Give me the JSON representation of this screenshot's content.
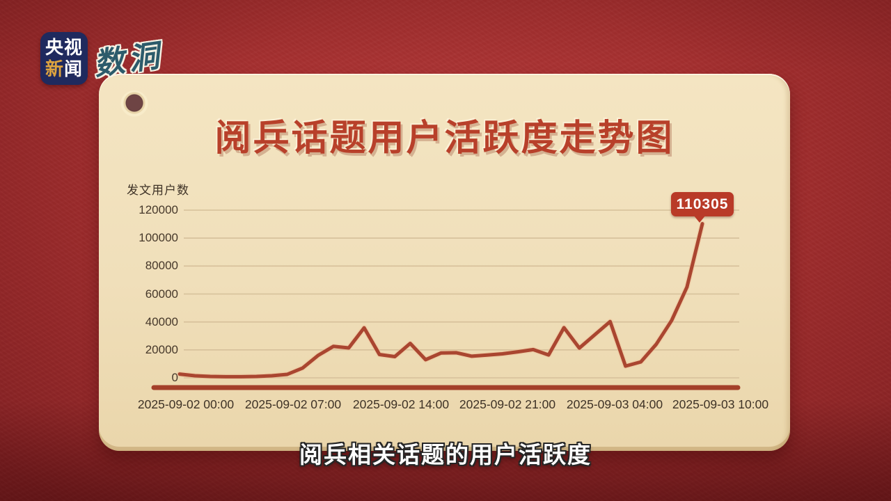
{
  "branding": {
    "cctv_line1": "央视",
    "cctv_line2_gold": "新",
    "cctv_line2_rest": "闻",
    "watermark": "数洞"
  },
  "card": {
    "title": "阅兵话题用户活跃度走势图"
  },
  "caption": "阅兵相关话题的用户活跃度",
  "callout": {
    "label": "110305"
  },
  "colors": {
    "background_red": "#a73131",
    "card_cream": "#f0dfba",
    "title_red": "#b8402a",
    "line_red": "#aa4630",
    "line_glow": "#f0c09a",
    "baseline_red": "#a4402a",
    "gridline": "#d6c09a",
    "axis_text": "#46382a",
    "callout_red": "#b93a28",
    "logo_navy": "#1f2a5e",
    "logo_gold": "#dda33f",
    "watermark_teal": "#2c5b6b"
  },
  "chart_data": {
    "type": "line",
    "title": "阅兵话题用户活跃度走势图",
    "xlabel": "",
    "ylabel": "发文用户数",
    "ylim": [
      0,
      120000
    ],
    "grid": true,
    "legend": false,
    "start_time": "2025-09-02 00:00",
    "interval_hours": 1,
    "x_tick_labels": [
      "2025-09-02 00:00",
      "2025-09-02 07:00",
      "2025-09-02 14:00",
      "2025-09-02 21:00",
      "2025-09-03 04:00",
      "2025-09-03 10:00"
    ],
    "x_tick_hours": [
      0,
      7,
      14,
      21,
      28,
      34
    ],
    "y_ticks": [
      0,
      20000,
      40000,
      60000,
      80000,
      100000,
      120000
    ],
    "series": [
      {
        "name": "发文用户数",
        "values": [
          2700,
          1500,
          1000,
          800,
          800,
          1000,
          1500,
          2500,
          7000,
          16000,
          22500,
          21400,
          35800,
          16700,
          15200,
          24650,
          13000,
          17800,
          18000,
          15500,
          16300,
          17200,
          18600,
          20200,
          16400,
          35900,
          21300,
          30800,
          40300,
          8400,
          11400,
          24000,
          41000,
          65000,
          110305
        ]
      }
    ],
    "peak_annotation": {
      "value": 110305,
      "time": "2025-09-03 10:00"
    }
  }
}
